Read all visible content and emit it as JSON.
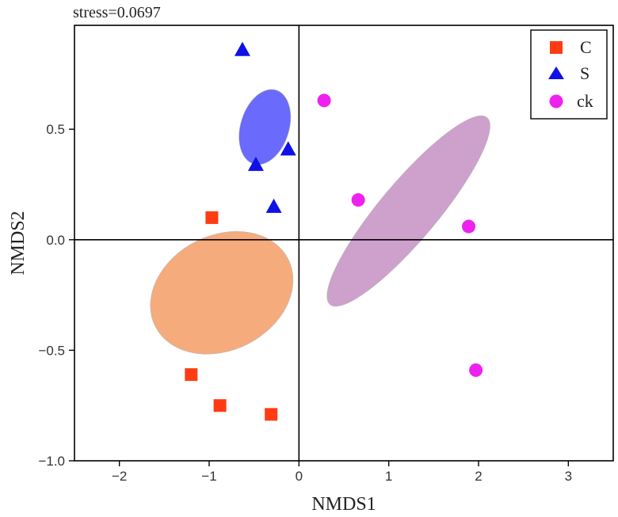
{
  "chart_data": {
    "type": "scatter",
    "title": "",
    "annotation": "stress=0.0697",
    "xlabel": "NMDS1",
    "ylabel": "NMDS2",
    "xlim": [
      -2.5,
      3.5
    ],
    "ylim": [
      -1.0,
      0.97
    ],
    "xticks": [
      -2,
      -1,
      0,
      1,
      2,
      3
    ],
    "xtick_labels": [
      "−2",
      "−1",
      "0",
      "1",
      "2",
      "3"
    ],
    "yticks": [
      -1.0,
      -0.5,
      0.0,
      0.5
    ],
    "ytick_labels": [
      "−1.0",
      "−0.5",
      "0.0",
      "0.5"
    ],
    "reference_lines": {
      "x": 0,
      "y": 0
    },
    "legend_position": "top-right",
    "series": [
      {
        "name": "C",
        "marker": "square",
        "color": "#ff3b14",
        "points": [
          [
            -0.97,
            0.1
          ],
          [
            -1.2,
            -0.61
          ],
          [
            -0.88,
            -0.75
          ],
          [
            -0.31,
            -0.79
          ]
        ],
        "ellipse": {
          "center": [
            -0.86,
            -0.24
          ],
          "rx": 0.83,
          "ry": 0.64,
          "tilt_deg": -27,
          "fill": "#f6ab7d"
        }
      },
      {
        "name": "S",
        "marker": "triangle",
        "color": "#1010e8",
        "points": [
          [
            -0.63,
            0.86
          ],
          [
            -0.12,
            0.41
          ],
          [
            -0.48,
            0.34
          ],
          [
            -0.28,
            0.15
          ]
        ],
        "ellipse": {
          "center": [
            -0.38,
            0.51
          ],
          "rx": 0.43,
          "ry": 0.27,
          "tilt_deg": -73,
          "fill": "#6a6afc"
        }
      },
      {
        "name": "ck",
        "marker": "circle",
        "color": "#ee22ee",
        "points": [
          [
            0.28,
            0.63
          ],
          [
            0.66,
            0.18
          ],
          [
            1.89,
            0.06
          ],
          [
            1.97,
            -0.59
          ]
        ],
        "ellipse": {
          "center": [
            1.22,
            0.13
          ],
          "rx": 1.36,
          "ry": 0.32,
          "tilt_deg": -50,
          "fill": "#cea0cc"
        }
      }
    ]
  }
}
